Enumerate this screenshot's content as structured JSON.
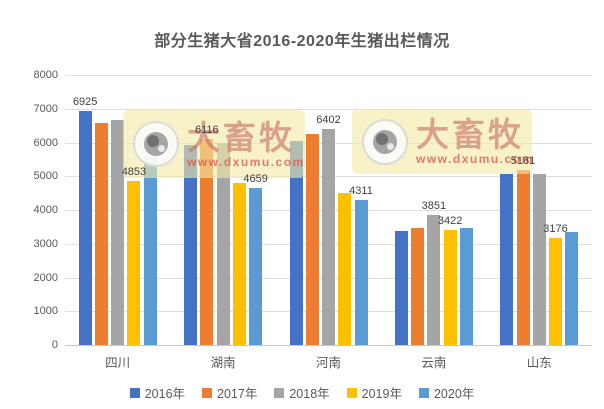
{
  "watermark": {
    "brand": "大畜牧",
    "url": "www.dxumu.com"
  },
  "chart_data": {
    "type": "bar",
    "title": "部分生猪大省2016-2020年生猪出栏情况",
    "categories": [
      "四川",
      "湖南",
      "河南",
      "云南",
      "山东"
    ],
    "series": [
      {
        "name": "2016年",
        "color": "#4472C4",
        "values": [
          6925,
          5930,
          6040,
          3390,
          5070
        ]
      },
      {
        "name": "2017年",
        "color": "#ED7D31",
        "values": [
          6580,
          6116,
          6250,
          3480,
          5181
        ]
      },
      {
        "name": "2018年",
        "color": "#A5A5A5",
        "values": [
          6660,
          6000,
          6402,
          3851,
          5070
        ]
      },
      {
        "name": "2019年",
        "color": "#FFC000",
        "values": [
          4853,
          4810,
          4500,
          3422,
          3176
        ]
      },
      {
        "name": "2020年",
        "color": "#5B9BD5",
        "values": [
          5600,
          4659,
          4311,
          3460,
          3350
        ]
      }
    ],
    "ylim": [
      0,
      8000
    ],
    "ytick_interval": 1000,
    "grid": true,
    "legend_position": "bottom",
    "data_labels": [
      {
        "category": "四川",
        "series": "2016年",
        "value": "6925"
      },
      {
        "category": "四川",
        "series": "2019年",
        "value": "4853"
      },
      {
        "category": "湖南",
        "series": "2017年",
        "value": "6116"
      },
      {
        "category": "湖南",
        "series": "2020年",
        "value": "4659"
      },
      {
        "category": "河南",
        "series": "2018年",
        "value": "6402"
      },
      {
        "category": "河南",
        "series": "2020年",
        "value": "4311"
      },
      {
        "category": "云南",
        "series": "2018年",
        "value": "3851"
      },
      {
        "category": "云南",
        "series": "2019年",
        "value": "3422"
      },
      {
        "category": "山东",
        "series": "2017年",
        "value": "5181"
      },
      {
        "category": "山东",
        "series": "2019年",
        "value": "3176"
      }
    ]
  }
}
